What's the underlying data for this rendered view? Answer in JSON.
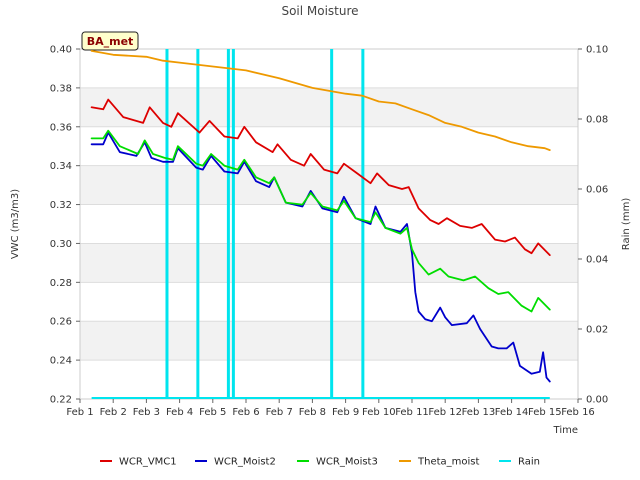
{
  "chart_data": {
    "type": "line",
    "title": "Soil Moisture",
    "badge": "BA_met",
    "xlabel": "Time",
    "ylabel": "VWC (m3/m3)",
    "y2label": "Rain (mm)",
    "xlim": [
      1,
      16
    ],
    "ylim": [
      0.22,
      0.4
    ],
    "y2lim": [
      0.0,
      0.1
    ],
    "x_ticks": [
      1,
      2,
      3,
      4,
      5,
      6,
      7,
      8,
      9,
      10,
      11,
      12,
      13,
      14,
      15,
      16
    ],
    "x_tick_labels": [
      "Feb 1",
      "Feb 2",
      "Feb 3",
      "Feb 4",
      "Feb 5",
      "Feb 6",
      "Feb 7",
      "Feb 8",
      "Feb 9",
      "Feb 10",
      "Feb 11",
      "Feb 12",
      "Feb 13",
      "Feb 14",
      "Feb 15",
      "Feb 16"
    ],
    "y_ticks": [
      0.22,
      0.24,
      0.26,
      0.28,
      0.3,
      0.32,
      0.34,
      0.36,
      0.38,
      0.4
    ],
    "y_tick_labels": [
      "0.22",
      "0.24",
      "0.26",
      "0.28",
      "0.30",
      "0.32",
      "0.34",
      "0.36",
      "0.38",
      "0.40"
    ],
    "y2_ticks": [
      0.0,
      0.02,
      0.04,
      0.06,
      0.08,
      0.1
    ],
    "y2_tick_labels": [
      "0.00",
      "0.02",
      "0.04",
      "0.06",
      "0.08",
      "0.10"
    ],
    "legend_position": "bottom",
    "series": [
      {
        "name": "WCR_VMC1",
        "color": "#dd0000",
        "axis": "left",
        "x": [
          1.35,
          1.7,
          1.85,
          2.3,
          2.9,
          3.1,
          3.5,
          3.75,
          3.95,
          4.6,
          4.9,
          5.35,
          5.75,
          5.95,
          6.3,
          6.8,
          6.95,
          7.35,
          7.75,
          7.95,
          8.35,
          8.75,
          8.95,
          9.35,
          9.75,
          9.95,
          10.3,
          10.7,
          10.9,
          11.2,
          11.55,
          11.8,
          12.05,
          12.45,
          12.8,
          13.1,
          13.5,
          13.8,
          14.1,
          14.4,
          14.6,
          14.8,
          15.15
        ],
        "y": [
          0.37,
          0.369,
          0.374,
          0.365,
          0.362,
          0.37,
          0.362,
          0.36,
          0.367,
          0.357,
          0.363,
          0.355,
          0.354,
          0.36,
          0.352,
          0.347,
          0.351,
          0.343,
          0.34,
          0.346,
          0.338,
          0.336,
          0.341,
          0.336,
          0.331,
          0.336,
          0.33,
          0.328,
          0.329,
          0.318,
          0.312,
          0.31,
          0.313,
          0.309,
          0.308,
          0.31,
          0.302,
          0.301,
          0.303,
          0.297,
          0.295,
          0.3,
          0.294
        ]
      },
      {
        "name": "WCR_Moist2",
        "color": "#0000cc",
        "axis": "left",
        "x": [
          1.35,
          1.7,
          1.85,
          2.2,
          2.7,
          2.95,
          3.15,
          3.5,
          3.8,
          3.95,
          4.5,
          4.7,
          4.95,
          5.35,
          5.75,
          5.95,
          6.3,
          6.7,
          6.85,
          7.2,
          7.7,
          7.95,
          8.3,
          8.75,
          8.95,
          9.3,
          9.75,
          9.9,
          10.2,
          10.65,
          10.85,
          11.0,
          11.1,
          11.2,
          11.4,
          11.6,
          11.85,
          12.0,
          12.2,
          12.65,
          12.85,
          13.05,
          13.4,
          13.6,
          13.85,
          14.05,
          14.25,
          14.6,
          14.85,
          14.95,
          15.05,
          15.15
        ],
        "y": [
          0.351,
          0.351,
          0.357,
          0.347,
          0.345,
          0.352,
          0.344,
          0.342,
          0.342,
          0.349,
          0.339,
          0.338,
          0.345,
          0.337,
          0.336,
          0.342,
          0.332,
          0.329,
          0.334,
          0.321,
          0.319,
          0.327,
          0.318,
          0.316,
          0.324,
          0.313,
          0.31,
          0.319,
          0.308,
          0.306,
          0.31,
          0.295,
          0.275,
          0.265,
          0.261,
          0.26,
          0.267,
          0.262,
          0.258,
          0.259,
          0.263,
          0.256,
          0.247,
          0.246,
          0.246,
          0.249,
          0.237,
          0.233,
          0.234,
          0.244,
          0.231,
          0.229
        ]
      },
      {
        "name": "WCR_Moist3",
        "color": "#00dd00",
        "axis": "left",
        "x": [
          1.35,
          1.7,
          1.85,
          2.2,
          2.75,
          2.95,
          3.2,
          3.55,
          3.8,
          3.95,
          4.5,
          4.7,
          4.95,
          5.35,
          5.75,
          5.95,
          6.3,
          6.7,
          6.85,
          7.2,
          7.7,
          7.95,
          8.3,
          8.75,
          8.95,
          9.3,
          9.75,
          9.9,
          10.2,
          10.65,
          10.85,
          11.0,
          11.2,
          11.5,
          11.85,
          12.1,
          12.55,
          12.9,
          13.3,
          13.6,
          13.9,
          14.3,
          14.6,
          14.8,
          15.15
        ],
        "y": [
          0.354,
          0.354,
          0.358,
          0.35,
          0.346,
          0.353,
          0.346,
          0.344,
          0.343,
          0.35,
          0.341,
          0.34,
          0.346,
          0.34,
          0.338,
          0.343,
          0.334,
          0.331,
          0.334,
          0.321,
          0.32,
          0.326,
          0.319,
          0.317,
          0.322,
          0.313,
          0.311,
          0.316,
          0.308,
          0.305,
          0.308,
          0.297,
          0.29,
          0.284,
          0.287,
          0.283,
          0.281,
          0.283,
          0.277,
          0.274,
          0.275,
          0.268,
          0.265,
          0.272,
          0.266
        ]
      },
      {
        "name": "Theta_moist",
        "color": "#ee9900",
        "axis": "left",
        "x": [
          1.35,
          2.0,
          3.0,
          3.5,
          4.0,
          5.0,
          6.0,
          7.0,
          8.0,
          9.0,
          9.5,
          10.0,
          10.5,
          11.0,
          11.5,
          12.0,
          12.5,
          13.0,
          13.5,
          14.0,
          14.5,
          15.0,
          15.15
        ],
        "y": [
          0.399,
          0.397,
          0.396,
          0.394,
          0.393,
          0.391,
          0.389,
          0.385,
          0.38,
          0.377,
          0.376,
          0.373,
          0.372,
          0.369,
          0.366,
          0.362,
          0.36,
          0.357,
          0.355,
          0.352,
          0.35,
          0.349,
          0.348
        ]
      }
    ],
    "rain": {
      "name": "Rain",
      "color": "#00e5ee",
      "axis": "right",
      "events": [
        {
          "x": 3.62,
          "value": 0.1
        },
        {
          "x": 4.55,
          "value": 0.1
        },
        {
          "x": 5.47,
          "value": 0.1
        },
        {
          "x": 5.62,
          "value": 0.1
        },
        {
          "x": 8.58,
          "value": 0.1
        },
        {
          "x": 9.52,
          "value": 0.1
        }
      ],
      "baseline_range": [
        1.35,
        15.15
      ]
    }
  }
}
